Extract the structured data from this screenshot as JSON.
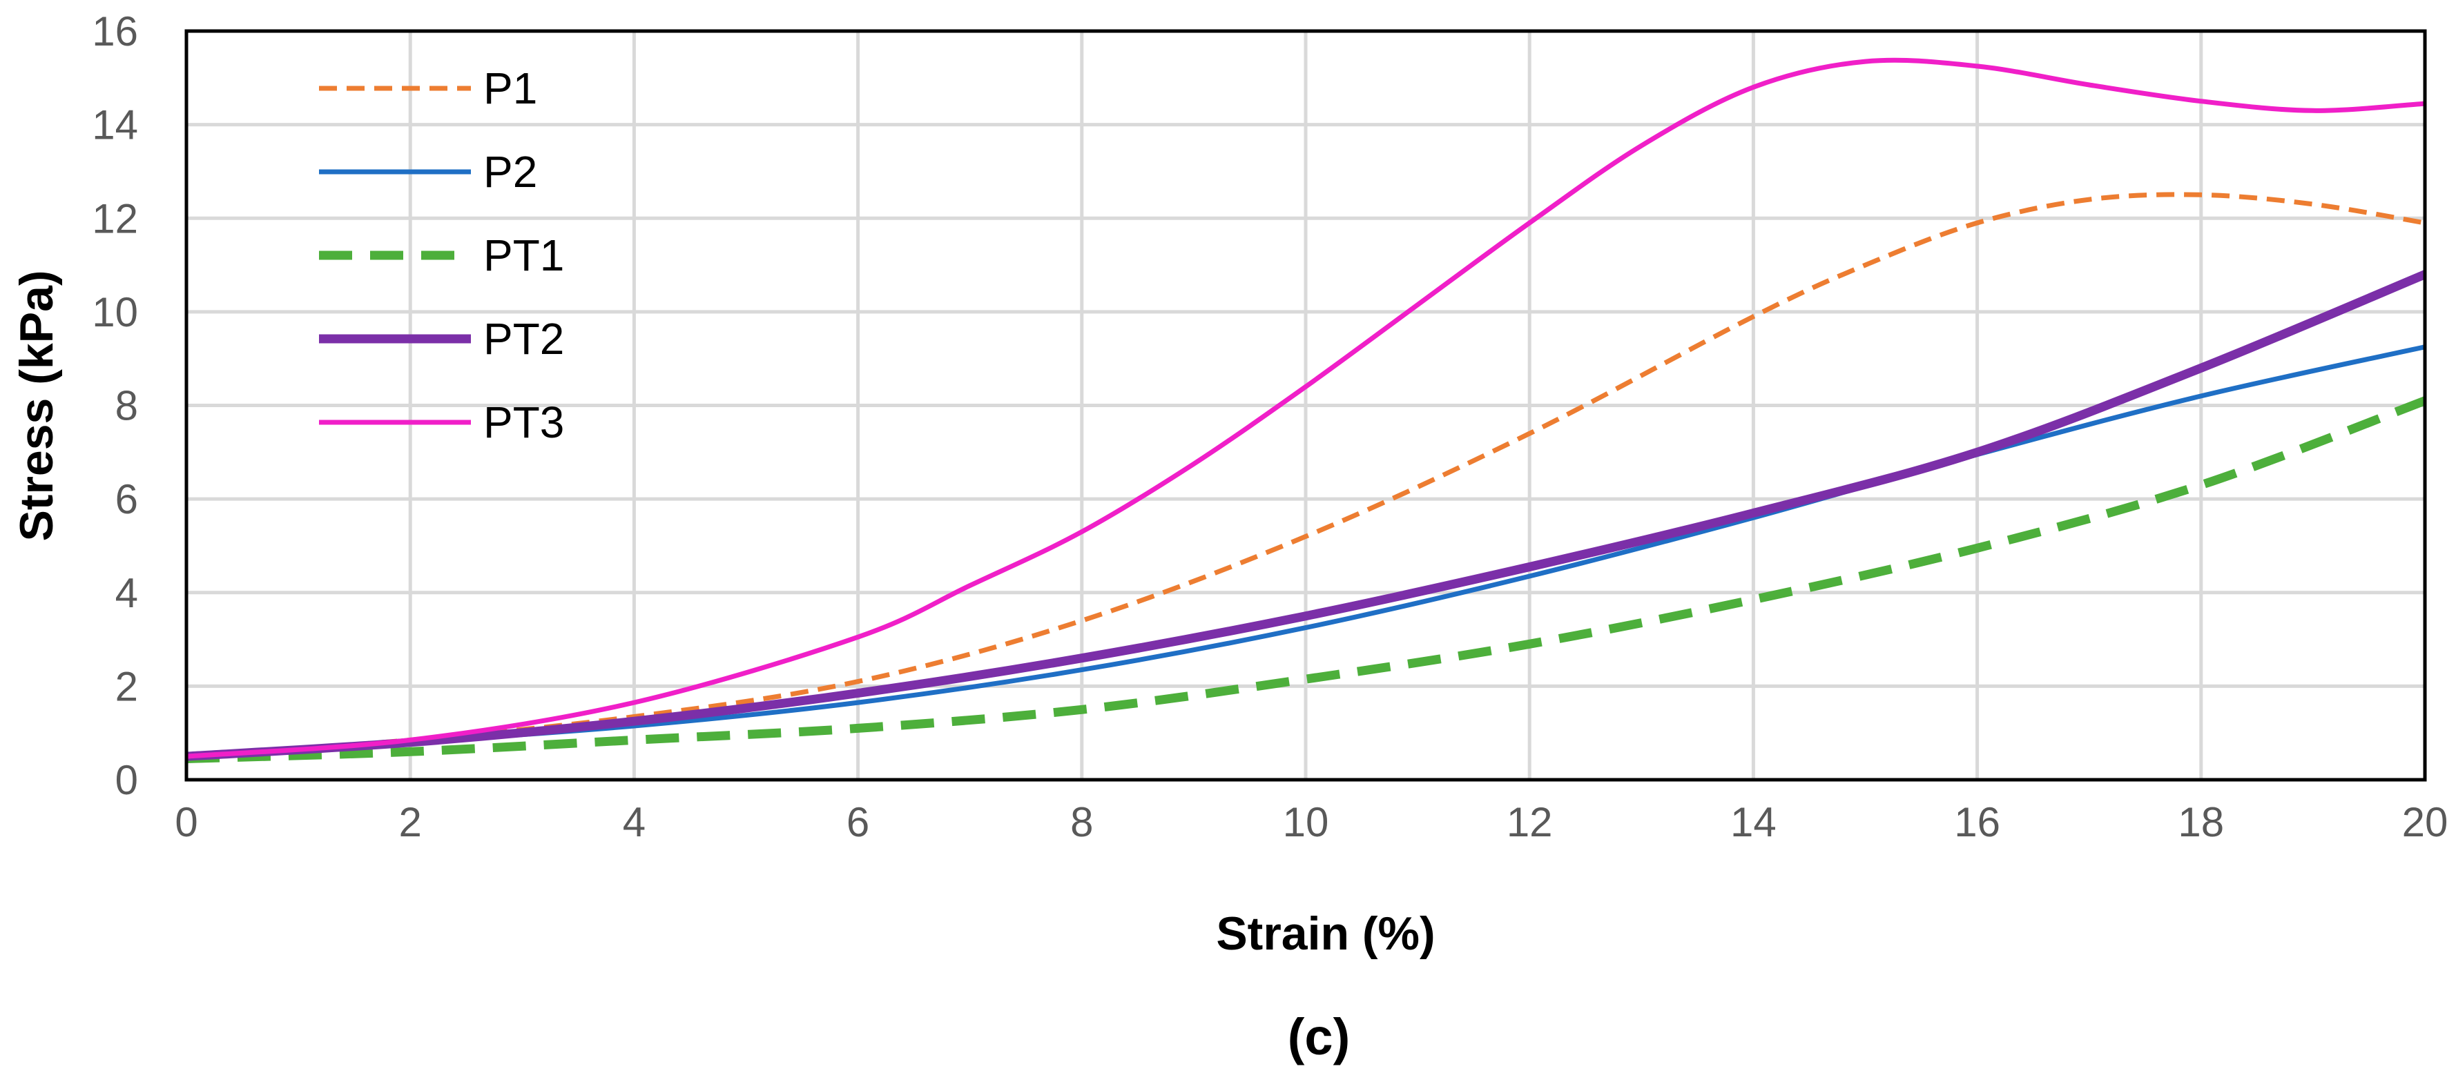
{
  "chart_data": {
    "type": "line",
    "title": "",
    "caption": "(c)",
    "xlabel": "Strain (%)",
    "ylabel": "Stress (kPa)",
    "xlim": [
      0,
      20
    ],
    "ylim": [
      0,
      16
    ],
    "xticks": [
      0,
      2,
      4,
      6,
      8,
      10,
      12,
      14,
      16,
      18,
      20
    ],
    "yticks": [
      0,
      2,
      4,
      6,
      8,
      10,
      12,
      14,
      16
    ],
    "grid": true,
    "legend_position": "top-left",
    "series": [
      {
        "name": "P1",
        "color": "#ED7D31",
        "style": "dashed",
        "weight": "normal",
        "x": [
          0,
          2,
          4,
          6,
          8,
          10,
          12,
          14,
          15,
          16,
          17,
          18,
          19,
          20
        ],
        "y": [
          0.5,
          0.85,
          1.35,
          2.1,
          3.4,
          5.2,
          7.4,
          9.9,
          11.0,
          11.9,
          12.4,
          12.5,
          12.3,
          11.9
        ]
      },
      {
        "name": "P2",
        "color": "#1F6FC5",
        "style": "solid",
        "weight": "normal",
        "x": [
          0,
          2,
          4,
          6,
          8,
          10,
          12,
          14,
          16,
          18,
          20
        ],
        "y": [
          0.5,
          0.8,
          1.15,
          1.65,
          2.35,
          3.25,
          4.35,
          5.6,
          6.95,
          8.2,
          9.25
        ]
      },
      {
        "name": "PT1",
        "color": "#4DAF3B",
        "style": "dashed",
        "weight": "bold",
        "x": [
          0,
          2,
          4,
          6,
          8,
          10,
          12,
          14,
          16,
          18,
          20
        ],
        "y": [
          0.45,
          0.6,
          0.85,
          1.1,
          1.5,
          2.15,
          2.9,
          3.85,
          4.95,
          6.3,
          8.1
        ]
      },
      {
        "name": "PT2",
        "color": "#7B2FA8",
        "style": "solid",
        "weight": "bold",
        "x": [
          0,
          2,
          4,
          6,
          8,
          10,
          12,
          14,
          16,
          18,
          20
        ],
        "y": [
          0.5,
          0.8,
          1.25,
          1.85,
          2.6,
          3.5,
          4.55,
          5.7,
          7.0,
          8.8,
          10.8
        ]
      },
      {
        "name": "PT3",
        "color": "#F01FC8",
        "style": "solid",
        "weight": "normal",
        "x": [
          0,
          2,
          4,
          6,
          7,
          8,
          9,
          10,
          11,
          12,
          13,
          14,
          15,
          16,
          17,
          18,
          19,
          20
        ],
        "y": [
          0.5,
          0.85,
          1.65,
          3.05,
          4.15,
          5.3,
          6.75,
          8.4,
          10.15,
          11.9,
          13.55,
          14.8,
          15.35,
          15.25,
          14.85,
          14.5,
          14.3,
          14.45
        ]
      }
    ]
  }
}
